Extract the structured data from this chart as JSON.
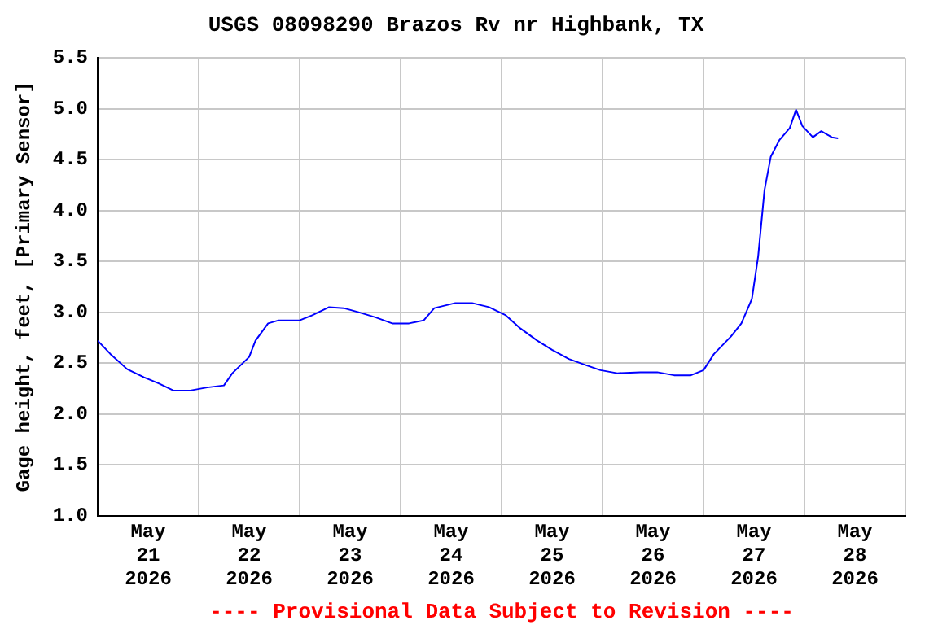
{
  "chart_data": {
    "type": "line",
    "title": "USGS 08098290 Brazos Rv nr Highbank, TX",
    "ylabel": "Gage height, feet, [Primary Sensor]",
    "annotations": [
      "---- Provisional Data Subject to Revision ----"
    ],
    "x": [
      "2026-05-21T00:00",
      "2026-05-21T03:00",
      "2026-05-21T07:00",
      "2026-05-21T11:00",
      "2026-05-21T14:30",
      "2026-05-21T18:00",
      "2026-05-21T22:00",
      "2026-05-22T02:00",
      "2026-05-22T06:00",
      "2026-05-22T08:00",
      "2026-05-22T12:00",
      "2026-05-22T13:30",
      "2026-05-22T16:30",
      "2026-05-22T19:00",
      "2026-05-23T00:00",
      "2026-05-23T03:00",
      "2026-05-23T07:00",
      "2026-05-23T10:30",
      "2026-05-23T14:00",
      "2026-05-23T18:00",
      "2026-05-23T22:00",
      "2026-05-24T02:00",
      "2026-05-24T05:30",
      "2026-05-24T08:00",
      "2026-05-24T13:00",
      "2026-05-24T17:00",
      "2026-05-24T21:00",
      "2026-05-25T01:00",
      "2026-05-25T04:30",
      "2026-05-25T08:30",
      "2026-05-25T12:00",
      "2026-05-25T16:00",
      "2026-05-25T20:00",
      "2026-05-25T23:30",
      "2026-05-26T03:30",
      "2026-05-26T09:00",
      "2026-05-26T13:00",
      "2026-05-26T17:00",
      "2026-05-26T21:00",
      "2026-05-27T00:00",
      "2026-05-27T02:30",
      "2026-05-27T06:30",
      "2026-05-27T09:00",
      "2026-05-27T11:30",
      "2026-05-27T13:00",
      "2026-05-27T14:30",
      "2026-05-27T16:00",
      "2026-05-27T18:00",
      "2026-05-27T20:30",
      "2026-05-27T22:00",
      "2026-05-27T23:30",
      "2026-05-28T02:00",
      "2026-05-28T04:00",
      "2026-05-28T06:30",
      "2026-05-28T08:00"
    ],
    "series": [
      {
        "color": "#0000ff",
        "values": [
          2.72,
          2.59,
          2.44,
          2.36,
          2.3,
          2.23,
          2.23,
          2.26,
          2.28,
          2.4,
          2.56,
          2.72,
          2.89,
          2.92,
          2.92,
          2.97,
          3.05,
          3.04,
          3.0,
          2.95,
          2.89,
          2.89,
          2.92,
          3.04,
          3.09,
          3.09,
          3.05,
          2.97,
          2.84,
          2.72,
          2.63,
          2.54,
          2.48,
          2.43,
          2.4,
          2.41,
          2.41,
          2.38,
          2.38,
          2.43,
          2.59,
          2.76,
          2.89,
          3.13,
          3.55,
          4.2,
          4.53,
          4.69,
          4.81,
          4.99,
          4.83,
          4.72,
          4.78,
          4.72,
          4.71
        ]
      }
    ],
    "xlim": [
      "2026-05-21T00:00",
      "2026-05-29T00:00"
    ],
    "xticks": [
      {
        "value": "2026-05-21T00:00",
        "label": null
      },
      {
        "value": "2026-05-21T12:00",
        "label": "May 21 2026"
      },
      {
        "value": "2026-05-22T00:00",
        "label": null
      },
      {
        "value": "2026-05-22T12:00",
        "label": "May 22 2026"
      },
      {
        "value": "2026-05-23T00:00",
        "label": null
      },
      {
        "value": "2026-05-23T12:00",
        "label": "May 23 2026"
      },
      {
        "value": "2026-05-24T00:00",
        "label": null
      },
      {
        "value": "2026-05-24T12:00",
        "label": "May 24 2026"
      },
      {
        "value": "2026-05-25T00:00",
        "label": null
      },
      {
        "value": "2026-05-25T12:00",
        "label": "May 25 2026"
      },
      {
        "value": "2026-05-26T00:00",
        "label": null
      },
      {
        "value": "2026-05-26T12:00",
        "label": "May 26 2026"
      },
      {
        "value": "2026-05-27T00:00",
        "label": null
      },
      {
        "value": "2026-05-27T12:00",
        "label": "May 27 2026"
      },
      {
        "value": "2026-05-28T00:00",
        "label": null
      },
      {
        "value": "2026-05-28T12:00",
        "label": "May 28 2026"
      },
      {
        "value": "2026-05-29T00:00",
        "label": null
      }
    ],
    "ylim": [
      1.0,
      5.5
    ],
    "yticks": [
      {
        "value": 1,
        "label": "1.0"
      },
      1.5,
      {
        "value": 2,
        "label": "2.0"
      },
      2.5,
      {
        "value": 3,
        "label": "3.0"
      },
      3.5,
      {
        "value": 4,
        "label": "4.0"
      },
      4.5,
      {
        "value": 5,
        "label": "5.0"
      },
      5.5
    ],
    "grid": true,
    "legend": false,
    "marker": "none",
    "line_style": "solid"
  }
}
